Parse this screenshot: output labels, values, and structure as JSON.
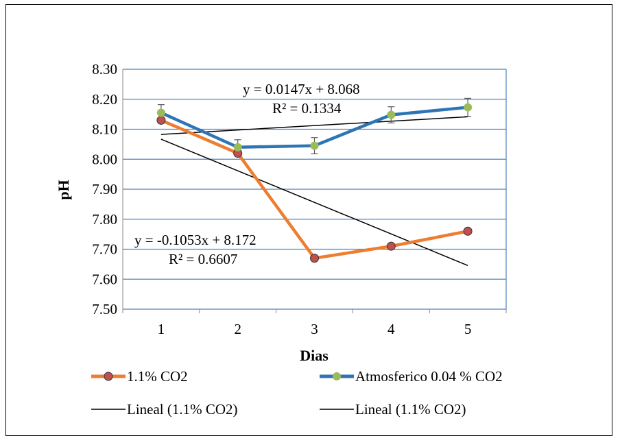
{
  "chart_data": {
    "type": "line",
    "xlabel": "Dias",
    "ylabel": "pH",
    "categories": [
      "1",
      "2",
      "3",
      "4",
      "5"
    ],
    "x": [
      1,
      2,
      3,
      4,
      5
    ],
    "ylim": [
      7.5,
      8.3
    ],
    "yticks": [
      "8.30",
      "8.20",
      "8.10",
      "8.00",
      "7.90",
      "7.80",
      "7.70",
      "7.60",
      "7.50"
    ],
    "grid": "horizontal",
    "legend_placement": "bottom",
    "series": [
      {
        "name": "1.1% CO2",
        "values": [
          8.13,
          8.02,
          7.67,
          7.71,
          7.76
        ],
        "line_color": "#ED7D31",
        "marker_color": "#C0504D"
      },
      {
        "name": "Atmosferico 0.04 % CO2",
        "values": [
          8.155,
          8.04,
          8.045,
          8.148,
          8.173
        ],
        "errors": [
          0.027,
          0.025,
          0.027,
          0.027,
          0.03
        ],
        "line_color": "#2E75B6",
        "marker_color": "#9BBB59"
      }
    ],
    "trendlines": [
      {
        "name": "Lineal (1.1% CO2)",
        "slope": -0.1053,
        "intercept": 8.172,
        "equation": "y = -0.1053x + 8.172",
        "r2": "R² = 0.6607",
        "color": "#000000"
      },
      {
        "name": "Lineal (1.1% CO2)",
        "slope": 0.0147,
        "intercept": 8.068,
        "equation": "y = 0.0147x + 8.068",
        "r2": "R² = 0.1334",
        "color": "#000000"
      }
    ],
    "colors": {
      "grid": "#4F81BD",
      "axis": "#888888",
      "error_bar": "#595959"
    }
  }
}
